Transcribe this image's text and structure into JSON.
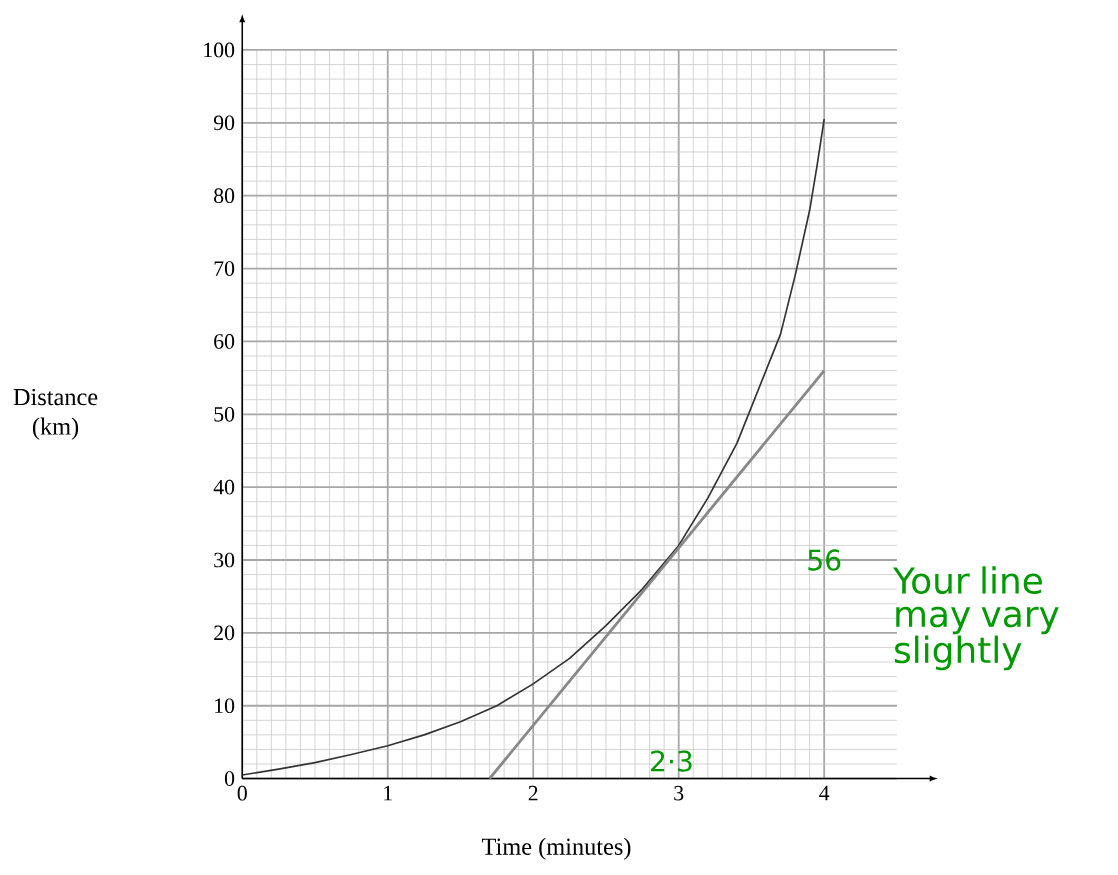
{
  "chart_data": {
    "type": "line",
    "xlabel": "Time (minutes)",
    "ylabel": "Distance (km)",
    "xlim": [
      0,
      4.5
    ],
    "ylim": [
      0,
      100
    ],
    "xticks": [
      0,
      1,
      2,
      3,
      4
    ],
    "yticks": [
      0,
      10,
      20,
      30,
      40,
      50,
      60,
      70,
      80,
      90,
      100
    ],
    "grid": true,
    "marker": "none",
    "series": [
      {
        "color": "#333333",
        "x": [
          0,
          0.25,
          0.5,
          0.75,
          1,
          1.25,
          1.5,
          1.75,
          2,
          2.25,
          2.5,
          2.75,
          3,
          3.2,
          3.4,
          3.5,
          3.6,
          3.7,
          3.8,
          3.9,
          3.95,
          4
        ],
        "values": [
          0.5,
          1.3,
          2.2,
          3.3,
          4.5,
          6,
          7.8,
          10,
          13,
          16.5,
          21,
          26,
          32,
          38.5,
          46,
          51,
          56,
          61,
          69,
          78,
          84,
          90.5
        ]
      },
      {
        "color": "#888888",
        "x": [
          1.7,
          4
        ],
        "values": [
          0,
          56
        ]
      }
    ],
    "annotations": [
      "56",
      "2·3",
      "Your line may vary slightly"
    ]
  }
}
